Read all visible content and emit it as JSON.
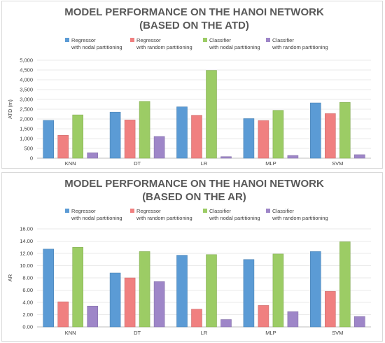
{
  "chart_data": [
    {
      "type": "bar",
      "title_lines": [
        "MODEL PERFORMANCE ON THE HANOI NETWORK",
        "(BASED ON THE ATD)"
      ],
      "ylabel": "ATD (m)",
      "xlabel": "",
      "ylim": [
        0,
        5000
      ],
      "yticks": [
        "0",
        "500",
        "1,000",
        "1,500",
        "2,000",
        "2,500",
        "3,000",
        "3,500",
        "4,000",
        "4,500",
        "5,000"
      ],
      "ytick_values": [
        0,
        500,
        1000,
        1500,
        2000,
        2500,
        3000,
        3500,
        4000,
        4500,
        5000
      ],
      "grid": true,
      "legend_position": "top",
      "categories": [
        "KNN",
        "DT",
        "LR",
        "MLP",
        "SVM"
      ],
      "series": [
        {
          "name_line1": "Regressor",
          "name_line2": "with nodal partitioning",
          "color": "#5b9bd5",
          "values": [
            1930,
            2350,
            2620,
            2020,
            2820
          ]
        },
        {
          "name_line1": "Regressor",
          "name_line2": "with random partitioning",
          "color": "#f08080",
          "values": [
            1170,
            1950,
            2190,
            1920,
            2280
          ]
        },
        {
          "name_line1": "Classifier",
          "name_line2": "with nodal partitioning",
          "color": "#9ccc65",
          "values": [
            2210,
            2900,
            4480,
            2440,
            2850
          ]
        },
        {
          "name_line1": "Classifier",
          "name_line2": "with random partitioning",
          "color": "#9e86c8",
          "values": [
            280,
            1110,
            80,
            140,
            180
          ]
        }
      ]
    },
    {
      "type": "bar",
      "title_lines": [
        "MODEL PERFORMANCE ON THE HANOI NETWORK",
        "(BASED ON THE AR)"
      ],
      "ylabel": "AR",
      "xlabel": "",
      "ylim": [
        0,
        16
      ],
      "yticks": [
        "0.00",
        "2.00",
        "4.00",
        "6.00",
        "8.00",
        "10.00",
        "12.00",
        "14.00",
        "16.00"
      ],
      "ytick_values": [
        0,
        2,
        4,
        6,
        8,
        10,
        12,
        14,
        16
      ],
      "grid": true,
      "legend_position": "top",
      "categories": [
        "KNN",
        "DT",
        "LR",
        "MLP",
        "SVM"
      ],
      "series": [
        {
          "name_line1": "Regressor",
          "name_line2": "with nodal partitioning",
          "color": "#5b9bd5",
          "values": [
            12.7,
            8.8,
            11.7,
            11.0,
            12.3
          ]
        },
        {
          "name_line1": "Regressor",
          "name_line2": "with random partitioning",
          "color": "#f08080",
          "values": [
            4.1,
            8.0,
            2.9,
            3.5,
            5.8
          ]
        },
        {
          "name_line1": "Classifier",
          "name_line2": "with nodal partitioning",
          "color": "#9ccc65",
          "values": [
            13.0,
            12.3,
            11.8,
            11.9,
            13.9
          ]
        },
        {
          "name_line1": "Classifier",
          "name_line2": "with random partitioning",
          "color": "#9e86c8",
          "values": [
            3.4,
            7.4,
            1.2,
            2.5,
            1.7
          ]
        }
      ]
    }
  ]
}
